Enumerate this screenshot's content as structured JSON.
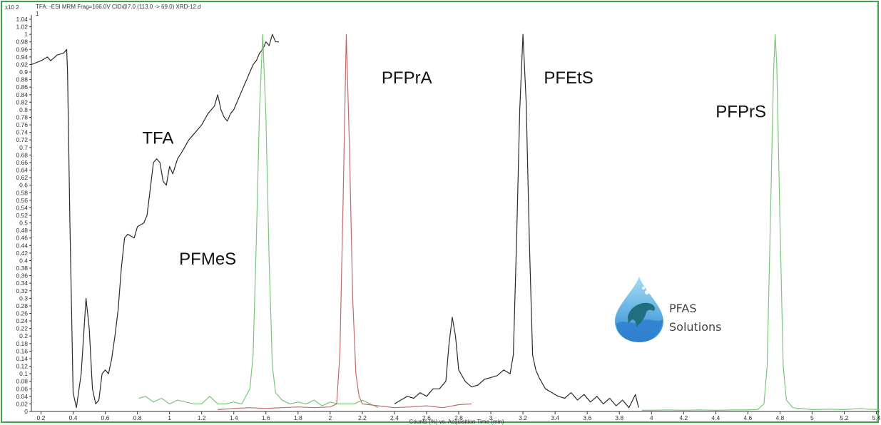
{
  "chart_data": {
    "type": "line",
    "header": "TFA: -ESI MRM Frag=166.0V CID@7.0 (113.0 -> 69.0) XRD-12.d",
    "y_multiplier": "x10 2",
    "header_index": "1",
    "xlabel": "Counts (%) vs. Acquisition Time (min)",
    "ylabel": "",
    "xlim": [
      0.14,
      5.42
    ],
    "ylim": [
      0,
      1.04
    ],
    "x_ticks": [
      "0.2",
      "0.4",
      "0.6",
      "0.8",
      "1",
      "1.2",
      "1.4",
      "1.6",
      "1.8",
      "2",
      "2.2",
      "2.4",
      "2.6",
      "2.8",
      "3",
      "3.2",
      "3.4",
      "3.6",
      "3.8",
      "4",
      "4.2",
      "4.4",
      "4.6",
      "4.8",
      "5",
      "5.2",
      "5.4"
    ],
    "y_ticks": [
      "0",
      "0.02",
      "0.04",
      "0.06",
      "0.08",
      "0.1",
      "0.12",
      "0.14",
      "0.16",
      "0.18",
      "0.2",
      "0.22",
      "0.24",
      "0.26",
      "0.28",
      "0.3",
      "0.32",
      "0.34",
      "0.36",
      "0.38",
      "0.4",
      "0.42",
      "0.44",
      "0.46",
      "0.48",
      "0.5",
      "0.52",
      "0.54",
      "0.56",
      "0.58",
      "0.6",
      "0.62",
      "0.64",
      "0.66",
      "0.68",
      "0.7",
      "0.72",
      "0.74",
      "0.76",
      "0.78",
      "0.8",
      "0.82",
      "0.84",
      "0.86",
      "0.88",
      "0.9",
      "0.92",
      "0.94",
      "0.96",
      "0.98",
      "1",
      "1.02",
      "1.04"
    ],
    "series": [
      {
        "color": "#2b2b2b",
        "points": [
          [
            0.14,
            0.92
          ],
          [
            0.2,
            0.93
          ],
          [
            0.24,
            0.94
          ],
          [
            0.26,
            0.93
          ],
          [
            0.3,
            0.945
          ],
          [
            0.34,
            0.95
          ],
          [
            0.36,
            0.96
          ],
          [
            0.365,
            0.9
          ],
          [
            0.38,
            0.5
          ],
          [
            0.4,
            0.05
          ],
          [
            0.42,
            0.01
          ],
          [
            0.45,
            0.1
          ],
          [
            0.48,
            0.3
          ],
          [
            0.5,
            0.22
          ],
          [
            0.52,
            0.06
          ],
          [
            0.54,
            0.02
          ],
          [
            0.56,
            0.03
          ],
          [
            0.58,
            0.1
          ],
          [
            0.6,
            0.11
          ],
          [
            0.62,
            0.1
          ],
          [
            0.64,
            0.14
          ],
          [
            0.66,
            0.2
          ],
          [
            0.68,
            0.27
          ],
          [
            0.7,
            0.38
          ],
          [
            0.72,
            0.46
          ],
          [
            0.74,
            0.47
          ],
          [
            0.78,
            0.46
          ],
          [
            0.8,
            0.49
          ],
          [
            0.84,
            0.5
          ],
          [
            0.86,
            0.52
          ],
          [
            0.88,
            0.59
          ],
          [
            0.9,
            0.66
          ],
          [
            0.92,
            0.67
          ],
          [
            0.94,
            0.66
          ],
          [
            0.96,
            0.61
          ],
          [
            0.98,
            0.6
          ],
          [
            1.0,
            0.65
          ],
          [
            1.02,
            0.63
          ],
          [
            1.05,
            0.67
          ],
          [
            1.08,
            0.69
          ],
          [
            1.12,
            0.72
          ],
          [
            1.16,
            0.74
          ],
          [
            1.2,
            0.76
          ],
          [
            1.24,
            0.79
          ],
          [
            1.26,
            0.8
          ],
          [
            1.28,
            0.81
          ],
          [
            1.3,
            0.84
          ],
          [
            1.32,
            0.8
          ],
          [
            1.34,
            0.78
          ],
          [
            1.36,
            0.77
          ],
          [
            1.38,
            0.79
          ],
          [
            1.4,
            0.8
          ],
          [
            1.42,
            0.82
          ],
          [
            1.44,
            0.84
          ],
          [
            1.46,
            0.86
          ],
          [
            1.48,
            0.88
          ],
          [
            1.5,
            0.9
          ],
          [
            1.52,
            0.92
          ],
          [
            1.54,
            0.93
          ],
          [
            1.56,
            0.95
          ],
          [
            1.58,
            0.96
          ],
          [
            1.6,
            0.98
          ],
          [
            1.62,
            0.97
          ],
          [
            1.64,
            1.0
          ],
          [
            1.66,
            0.98
          ],
          [
            1.68,
            0.98
          ]
        ]
      },
      {
        "color": "#2b2b2b",
        "points": [
          [
            2.4,
            0.02
          ],
          [
            2.44,
            0.03
          ],
          [
            2.48,
            0.04
          ],
          [
            2.52,
            0.035
          ],
          [
            2.56,
            0.05
          ],
          [
            2.6,
            0.04
          ],
          [
            2.64,
            0.06
          ],
          [
            2.68,
            0.06
          ],
          [
            2.72,
            0.08
          ],
          [
            2.74,
            0.18
          ],
          [
            2.76,
            0.25
          ],
          [
            2.78,
            0.2
          ],
          [
            2.8,
            0.11
          ],
          [
            2.84,
            0.08
          ],
          [
            2.88,
            0.065
          ],
          [
            2.92,
            0.07
          ],
          [
            2.96,
            0.085
          ],
          [
            3.0,
            0.09
          ],
          [
            3.04,
            0.095
          ],
          [
            3.08,
            0.11
          ],
          [
            3.12,
            0.1
          ],
          [
            3.14,
            0.15
          ],
          [
            3.16,
            0.45
          ],
          [
            3.18,
            0.8
          ],
          [
            3.2,
            1.0
          ],
          [
            3.22,
            0.82
          ],
          [
            3.24,
            0.45
          ],
          [
            3.26,
            0.15
          ],
          [
            3.28,
            0.11
          ],
          [
            3.3,
            0.09
          ],
          [
            3.34,
            0.06
          ],
          [
            3.38,
            0.05
          ],
          [
            3.42,
            0.04
          ],
          [
            3.46,
            0.035
          ],
          [
            3.5,
            0.05
          ],
          [
            3.54,
            0.03
          ],
          [
            3.58,
            0.045
          ],
          [
            3.62,
            0.025
          ],
          [
            3.66,
            0.04
          ],
          [
            3.7,
            0.02
          ],
          [
            3.74,
            0.035
          ],
          [
            3.78,
            0.015
          ],
          [
            3.82,
            0.03
          ],
          [
            3.86,
            0.01
          ],
          [
            3.9,
            0.045
          ],
          [
            3.92,
            0.01
          ]
        ]
      },
      {
        "color": "#7ac77a",
        "points": [
          [
            0.81,
            0.035
          ],
          [
            0.85,
            0.04
          ],
          [
            0.9,
            0.025
          ],
          [
            0.95,
            0.035
          ],
          [
            1.0,
            0.02
          ],
          [
            1.05,
            0.03
          ],
          [
            1.1,
            0.025
          ],
          [
            1.15,
            0.02
          ],
          [
            1.2,
            0.02
          ],
          [
            1.25,
            0.04
          ],
          [
            1.3,
            0.02
          ],
          [
            1.35,
            0.02
          ],
          [
            1.4,
            0.025
          ],
          [
            1.45,
            0.02
          ],
          [
            1.5,
            0.06
          ],
          [
            1.52,
            0.15
          ],
          [
            1.54,
            0.45
          ],
          [
            1.56,
            0.8
          ],
          [
            1.58,
            1.0
          ],
          [
            1.6,
            0.78
          ],
          [
            1.62,
            0.4
          ],
          [
            1.64,
            0.12
          ],
          [
            1.66,
            0.05
          ],
          [
            1.7,
            0.03
          ],
          [
            1.75,
            0.02
          ],
          [
            1.8,
            0.025
          ],
          [
            1.85,
            0.02
          ],
          [
            1.9,
            0.03
          ],
          [
            1.95,
            0.015
          ],
          [
            2.0,
            0.025
          ],
          [
            2.05,
            0.02
          ],
          [
            2.1,
            0.02
          ],
          [
            2.15,
            0.02
          ],
          [
            2.2,
            0.03
          ],
          [
            2.25,
            0.02
          ],
          [
            2.3,
            0.01
          ]
        ]
      },
      {
        "color": "#c06b6b",
        "points": [
          [
            1.3,
            0.005
          ],
          [
            1.4,
            0.008
          ],
          [
            1.5,
            0.01
          ],
          [
            1.6,
            0.008
          ],
          [
            1.7,
            0.01
          ],
          [
            1.8,
            0.012
          ],
          [
            1.9,
            0.01
          ],
          [
            2.0,
            0.012
          ],
          [
            2.04,
            0.02
          ],
          [
            2.06,
            0.15
          ],
          [
            2.08,
            0.55
          ],
          [
            2.1,
            1.0
          ],
          [
            2.12,
            0.7
          ],
          [
            2.14,
            0.3
          ],
          [
            2.16,
            0.1
          ],
          [
            2.18,
            0.04
          ],
          [
            2.2,
            0.02
          ],
          [
            2.3,
            0.015
          ],
          [
            2.4,
            0.01
          ],
          [
            2.5,
            0.012
          ],
          [
            2.6,
            0.015
          ],
          [
            2.7,
            0.01
          ],
          [
            2.8,
            0.018
          ],
          [
            2.88,
            0.02
          ]
        ]
      },
      {
        "color": "#7ac77a",
        "points": [
          [
            3.94,
            0.003
          ],
          [
            4.0,
            0.003
          ],
          [
            4.1,
            0.004
          ],
          [
            4.2,
            0.003
          ],
          [
            4.3,
            0.004
          ],
          [
            4.4,
            0.003
          ],
          [
            4.5,
            0.004
          ],
          [
            4.6,
            0.004
          ],
          [
            4.66,
            0.005
          ],
          [
            4.7,
            0.02
          ],
          [
            4.72,
            0.12
          ],
          [
            4.74,
            0.5
          ],
          [
            4.76,
            0.9
          ],
          [
            4.77,
            1.0
          ],
          [
            4.78,
            0.92
          ],
          [
            4.8,
            0.5
          ],
          [
            4.82,
            0.12
          ],
          [
            4.84,
            0.03
          ],
          [
            4.88,
            0.01
          ],
          [
            5.0,
            0.005
          ],
          [
            5.1,
            0.006
          ],
          [
            5.2,
            0.005
          ],
          [
            5.3,
            0.008
          ],
          [
            5.35,
            0.006
          ],
          [
            5.42,
            0.005
          ]
        ]
      }
    ],
    "annotations": [
      {
        "text": "TFA",
        "x": 0.83,
        "y": 0.71
      },
      {
        "text": "PFMeS",
        "x": 1.06,
        "y": 0.39
      },
      {
        "text": "PFPrA",
        "x": 2.32,
        "y": 0.87
      },
      {
        "text": "PFEtS",
        "x": 3.33,
        "y": 0.87
      },
      {
        "text": "PFPrS",
        "x": 4.4,
        "y": 0.78
      }
    ],
    "grid": false,
    "legend": "none"
  },
  "logo": {
    "line1": "PFAS",
    "line2": "Solutions"
  },
  "colors": {
    "border": "#3fa34d",
    "axis": "#333333",
    "logo_drop_top": "#8fd2f0",
    "logo_drop_bottom": "#2c8fd6",
    "logo_fish": "#1f6f80"
  }
}
